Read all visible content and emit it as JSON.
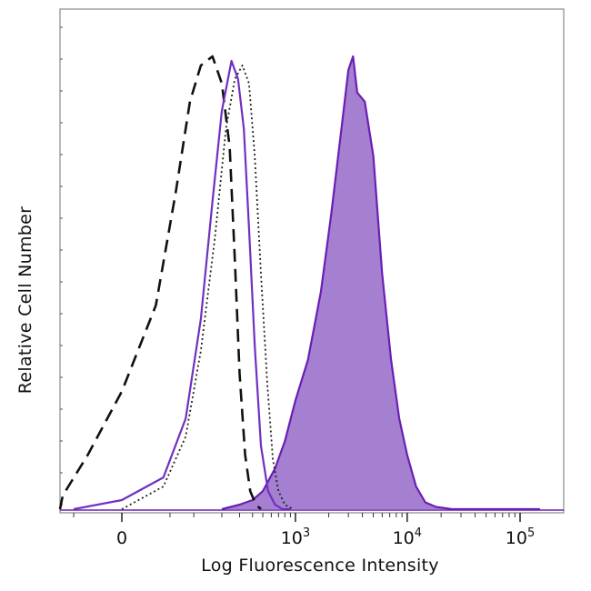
{
  "chart_data": {
    "type": "area",
    "xlabel": "Log Fluorescence Intensity",
    "ylabel": "Relative Cell Number",
    "x_scale": "biexponential",
    "xlim": [
      -120,
      150000
    ],
    "ylim": [
      0,
      1.05
    ],
    "grid": false,
    "x_ticks": [
      {
        "value": 0,
        "base": "0",
        "exp": ""
      },
      {
        "value": 1000,
        "base": "10",
        "exp": "3"
      },
      {
        "value": 10000,
        "base": "10",
        "exp": "4"
      },
      {
        "value": 100000,
        "base": "10",
        "exp": "5"
      }
    ],
    "colors": {
      "stained": "#6a1fb5",
      "stained_fill": "#a57fd0",
      "isotype": "#7030c0",
      "unstained": "#111111",
      "control_dotted": "#222222",
      "frame": "#888888"
    },
    "series": [
      {
        "style": "dashed",
        "color_key": "unstained",
        "fill": false,
        "x": [
          -110,
          -70,
          -30,
          0,
          30,
          60,
          90,
          120,
          160,
          200,
          240,
          270,
          300,
          340,
          380,
          430,
          480
        ],
        "y": [
          0.0,
          0.03,
          0.12,
          0.26,
          0.45,
          0.7,
          0.9,
          0.98,
          1.0,
          0.94,
          0.8,
          0.55,
          0.3,
          0.12,
          0.04,
          0.01,
          0.0
        ]
      },
      {
        "style": "solid",
        "color_key": "isotype",
        "fill": false,
        "x": [
          -50,
          0,
          40,
          80,
          120,
          160,
          200,
          250,
          290,
          330,
          370,
          420,
          480,
          560,
          650,
          760,
          900
        ],
        "y": [
          0.0,
          0.02,
          0.07,
          0.2,
          0.42,
          0.68,
          0.88,
          0.99,
          0.95,
          0.84,
          0.62,
          0.36,
          0.14,
          0.04,
          0.01,
          0.0,
          0.0
        ]
      },
      {
        "style": "dotted",
        "color_key": "control_dotted",
        "fill": false,
        "x": [
          0,
          40,
          80,
          120,
          170,
          220,
          270,
          320,
          370,
          420,
          480,
          550,
          620,
          700,
          800,
          950
        ],
        "y": [
          0.0,
          0.05,
          0.16,
          0.35,
          0.6,
          0.84,
          0.95,
          0.98,
          0.94,
          0.78,
          0.52,
          0.28,
          0.11,
          0.04,
          0.01,
          0.0
        ]
      },
      {
        "style": "solid-filled",
        "color_key": "stained",
        "fill": true,
        "x": [
          200,
          300,
          400,
          500,
          650,
          800,
          1000,
          1300,
          1700,
          2100,
          2600,
          3000,
          3300,
          3600,
          4200,
          5000,
          6000,
          7200,
          8500,
          10000,
          12000,
          14500,
          18000,
          25000,
          40000,
          100000,
          150000
        ],
        "y": [
          0.0,
          0.01,
          0.02,
          0.04,
          0.09,
          0.15,
          0.24,
          0.33,
          0.48,
          0.65,
          0.84,
          0.97,
          1.0,
          0.92,
          0.9,
          0.78,
          0.52,
          0.33,
          0.2,
          0.12,
          0.05,
          0.015,
          0.005,
          0.0,
          0.0,
          0.0,
          0.0
        ]
      }
    ]
  }
}
